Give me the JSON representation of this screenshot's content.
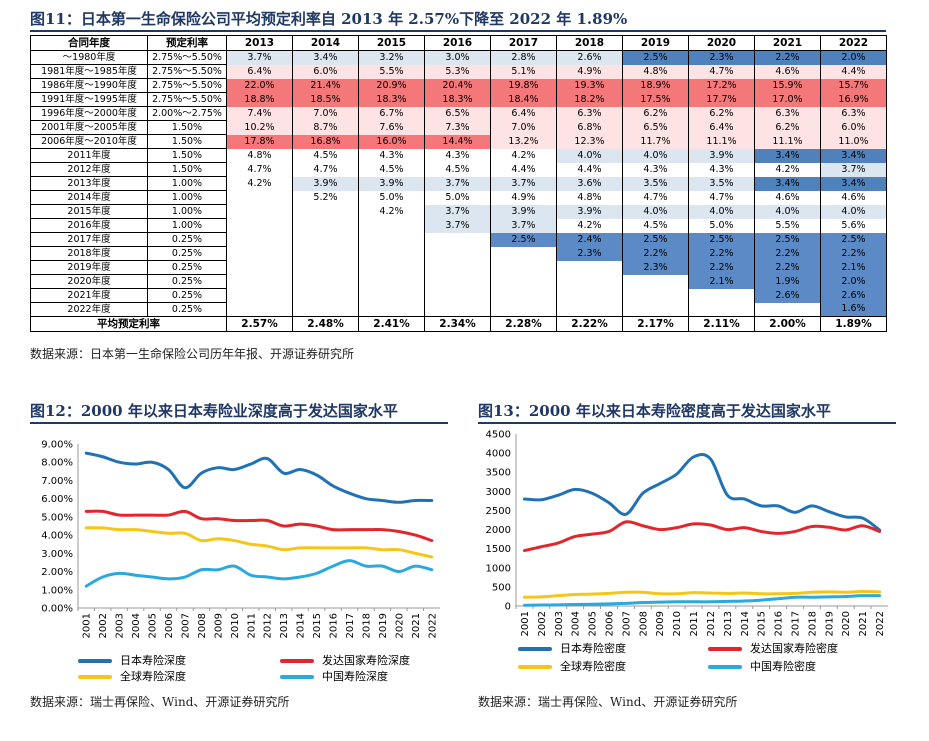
{
  "figure11": {
    "title": "图11：日本第一生命保险公司平均预定利率自 2013 年 2.57%下降至 2022 年 1.89%",
    "source": "数据来源：日本第一生命保险公司历年年报、开源证券研究所",
    "header": {
      "period": "合同年度",
      "rate": "预定利率",
      "years": [
        "2013",
        "2014",
        "2015",
        "2016",
        "2017",
        "2018",
        "2019",
        "2020",
        "2021",
        "2022"
      ]
    },
    "rows": [
      {
        "period": "～1980年度",
        "rate": "2.75%～5.50%",
        "values": [
          "3.7%",
          "3.4%",
          "3.2%",
          "3.0%",
          "2.8%",
          "2.6%",
          "2.5%",
          "2.3%",
          "2.2%",
          "2.0%"
        ]
      },
      {
        "period": "1981年度～1985年度",
        "rate": "2.75%～5.50%",
        "values": [
          "6.4%",
          "6.0%",
          "5.5%",
          "5.3%",
          "5.1%",
          "4.9%",
          "4.8%",
          "4.7%",
          "4.6%",
          "4.4%"
        ]
      },
      {
        "period": "1986年度～1990年度",
        "rate": "2.75%～5.50%",
        "values": [
          "22.0%",
          "21.4%",
          "20.9%",
          "20.4%",
          "19.8%",
          "19.3%",
          "18.9%",
          "17.2%",
          "15.9%",
          "15.7%"
        ]
      },
      {
        "period": "1991年度～1995年度",
        "rate": "2.75%～5.50%",
        "values": [
          "18.8%",
          "18.5%",
          "18.3%",
          "18.3%",
          "18.4%",
          "18.2%",
          "17.5%",
          "17.7%",
          "17.0%",
          "16.9%"
        ]
      },
      {
        "period": "1996年度～2000年度",
        "rate": "2.00%～2.75%",
        "values": [
          "7.4%",
          "7.0%",
          "6.7%",
          "6.5%",
          "6.4%",
          "6.3%",
          "6.2%",
          "6.2%",
          "6.3%",
          "6.3%"
        ]
      },
      {
        "period": "2001年度～2005年度",
        "rate": "1.50%",
        "values": [
          "10.2%",
          "8.7%",
          "7.6%",
          "7.3%",
          "7.0%",
          "6.8%",
          "6.5%",
          "6.4%",
          "6.2%",
          "6.0%"
        ]
      },
      {
        "period": "2006年度～2010年度",
        "rate": "1.50%",
        "values": [
          "17.8%",
          "16.8%",
          "16.0%",
          "14.4%",
          "13.2%",
          "12.3%",
          "11.7%",
          "11.1%",
          "11.1%",
          "11.0%"
        ]
      },
      {
        "period": "2011年度",
        "rate": "1.50%",
        "values": [
          "4.8%",
          "4.5%",
          "4.3%",
          "4.3%",
          "4.2%",
          "4.0%",
          "4.0%",
          "3.9%",
          "3.4%",
          "3.4%"
        ]
      },
      {
        "period": "2012年度",
        "rate": "1.50%",
        "values": [
          "4.7%",
          "4.7%",
          "4.5%",
          "4.5%",
          "4.4%",
          "4.4%",
          "4.3%",
          "4.3%",
          "4.2%",
          "3.7%"
        ]
      },
      {
        "period": "2013年度",
        "rate": "1.00%",
        "values": [
          "4.2%",
          "3.9%",
          "3.9%",
          "3.7%",
          "3.7%",
          "3.6%",
          "3.5%",
          "3.5%",
          "3.4%",
          "3.4%"
        ]
      },
      {
        "period": "2014年度",
        "rate": "1.00%",
        "values": [
          "",
          "5.2%",
          "5.0%",
          "5.0%",
          "4.9%",
          "4.8%",
          "4.7%",
          "4.7%",
          "4.6%",
          "4.6%"
        ]
      },
      {
        "period": "2015年度",
        "rate": "1.00%",
        "values": [
          "",
          "",
          "4.2%",
          "3.7%",
          "3.9%",
          "3.9%",
          "4.0%",
          "4.0%",
          "4.0%",
          "4.0%"
        ]
      },
      {
        "period": "2016年度",
        "rate": "1.00%",
        "values": [
          "",
          "",
          "",
          "3.7%",
          "3.7%",
          "4.2%",
          "4.5%",
          "5.0%",
          "5.5%",
          "5.6%"
        ]
      },
      {
        "period": "2017年度",
        "rate": "0.25%",
        "values": [
          "",
          "",
          "",
          "",
          "2.5%",
          "2.4%",
          "2.5%",
          "2.5%",
          "2.5%",
          "2.5%"
        ]
      },
      {
        "period": "2018年度",
        "rate": "0.25%",
        "values": [
          "",
          "",
          "",
          "",
          "",
          "2.3%",
          "2.2%",
          "2.2%",
          "2.2%",
          "2.2%"
        ]
      },
      {
        "period": "2019年度",
        "rate": "0.25%",
        "values": [
          "",
          "",
          "",
          "",
          "",
          "",
          "2.3%",
          "2.2%",
          "2.2%",
          "2.1%"
        ]
      },
      {
        "period": "2020年度",
        "rate": "0.25%",
        "values": [
          "",
          "",
          "",
          "",
          "",
          "",
          "",
          "2.1%",
          "1.9%",
          "2.0%"
        ]
      },
      {
        "period": "2021年度",
        "rate": "0.25%",
        "values": [
          "",
          "",
          "",
          "",
          "",
          "",
          "",
          "",
          "2.6%",
          "2.6%"
        ]
      },
      {
        "period": "2022年度",
        "rate": "0.25%",
        "values": [
          "",
          "",
          "",
          "",
          "",
          "",
          "",
          "",
          "",
          "1.6%"
        ]
      }
    ],
    "average": {
      "label": "平均预定利率",
      "values": [
        "2.57%",
        "2.48%",
        "2.41%",
        "2.34%",
        "2.28%",
        "2.22%",
        "2.17%",
        "2.11%",
        "2.00%",
        "1.89%"
      ]
    },
    "cell_colors": {
      "blue_dark": "#4f81bd",
      "blue_light": "#dce6f1",
      "red_dark": "#f4777a",
      "red_light": "#fde3e4",
      "white": "#ffffff"
    }
  },
  "figure12": {
    "title": "图12：2000 年以来日本寿险业深度高于发达国家水平",
    "source": "数据来源：瑞士再保险、Wind、开源证券研究所",
    "chart_data": {
      "type": "line",
      "title": "",
      "x": [
        "2001",
        "2002",
        "2003",
        "2004",
        "2005",
        "2006",
        "2007",
        "2008",
        "2009",
        "2010",
        "2011",
        "2012",
        "2013",
        "2014",
        "2015",
        "2016",
        "2017",
        "2018",
        "2019",
        "2020",
        "2021",
        "2022"
      ],
      "ylim": [
        0,
        9
      ],
      "yticks": [
        "0.00%",
        "1.00%",
        "2.00%",
        "3.00%",
        "4.00%",
        "5.00%",
        "6.00%",
        "7.00%",
        "8.00%",
        "9.00%"
      ],
      "series": [
        {
          "name": "日本寿险深度",
          "color": "#2171b5",
          "values": [
            8.5,
            8.3,
            8.0,
            7.9,
            8.0,
            7.6,
            6.6,
            7.4,
            7.7,
            7.6,
            7.9,
            8.2,
            7.4,
            7.6,
            7.3,
            6.7,
            6.3,
            6.0,
            5.9,
            5.8,
            5.9,
            5.9
          ]
        },
        {
          "name": "发达国家寿险深度",
          "color": "#e3262c",
          "values": [
            5.3,
            5.3,
            5.1,
            5.1,
            5.1,
            5.1,
            5.3,
            4.9,
            4.9,
            4.8,
            4.8,
            4.8,
            4.5,
            4.6,
            4.5,
            4.3,
            4.3,
            4.3,
            4.3,
            4.2,
            4.0,
            3.7
          ]
        },
        {
          "name": "全球寿险深度",
          "color": "#f5c518",
          "values": [
            4.4,
            4.4,
            4.3,
            4.3,
            4.2,
            4.1,
            4.1,
            3.7,
            3.8,
            3.7,
            3.5,
            3.4,
            3.2,
            3.3,
            3.3,
            3.3,
            3.3,
            3.3,
            3.2,
            3.2,
            3.0,
            2.8
          ]
        },
        {
          "name": "中国寿险深度",
          "color": "#2aa9df",
          "values": [
            1.2,
            1.7,
            1.9,
            1.8,
            1.7,
            1.6,
            1.7,
            2.1,
            2.1,
            2.3,
            1.8,
            1.7,
            1.6,
            1.7,
            1.9,
            2.3,
            2.6,
            2.3,
            2.3,
            2.0,
            2.3,
            2.1
          ]
        }
      ]
    }
  },
  "figure13": {
    "title": "图13：2000 年以来日本寿险密度高于发达国家水平",
    "source": "数据来源：瑞士再保险、Wind、开源证券研究所",
    "chart_data": {
      "type": "line",
      "title": "",
      "x": [
        "2001",
        "2002",
        "2003",
        "2004",
        "2005",
        "2006",
        "2007",
        "2008",
        "2009",
        "2010",
        "2011",
        "2012",
        "2013",
        "2014",
        "2015",
        "2016",
        "2017",
        "2018",
        "2019",
        "2020",
        "2021",
        "2022"
      ],
      "ylim": [
        0,
        4500
      ],
      "yticks": [
        "0",
        "500",
        "1000",
        "1500",
        "2000",
        "2500",
        "3000",
        "3500",
        "4000",
        "4500"
      ],
      "series": [
        {
          "name": "日本寿险密度",
          "color": "#2171b5",
          "values": [
            2800,
            2780,
            2900,
            3050,
            2950,
            2700,
            2400,
            2950,
            3200,
            3450,
            3900,
            3850,
            2900,
            2800,
            2620,
            2620,
            2450,
            2620,
            2470,
            2330,
            2300,
            1990
          ]
        },
        {
          "name": "发达国家寿险密度",
          "color": "#e3262c",
          "values": [
            1450,
            1550,
            1650,
            1820,
            1880,
            1950,
            2200,
            2100,
            2000,
            2050,
            2150,
            2120,
            2000,
            2050,
            1950,
            1900,
            1950,
            2080,
            2060,
            1990,
            2100,
            1950
          ]
        },
        {
          "name": "全球寿险密度",
          "color": "#f5c518",
          "values": [
            230,
            240,
            270,
            300,
            310,
            330,
            360,
            360,
            320,
            320,
            350,
            340,
            330,
            340,
            320,
            320,
            330,
            360,
            370,
            360,
            380,
            370
          ]
        },
        {
          "name": "中国寿险密度",
          "color": "#2aa9df",
          "values": [
            20,
            25,
            30,
            40,
            45,
            55,
            70,
            90,
            100,
            110,
            110,
            110,
            120,
            130,
            155,
            190,
            230,
            230,
            240,
            250,
            270,
            270
          ]
        }
      ]
    }
  }
}
